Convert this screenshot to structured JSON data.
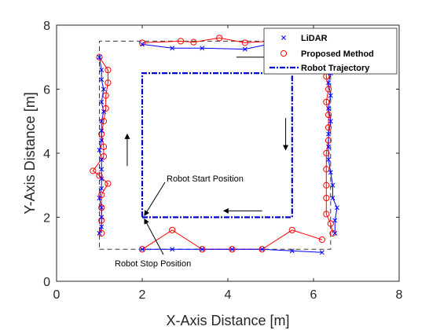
{
  "chart_data": {
    "type": "scatter",
    "xlabel": "X-Axis Distance [m]",
    "ylabel": "Y-Axis Distance [m]",
    "xlim": [
      0,
      8
    ],
    "ylim": [
      0,
      8
    ],
    "xticks": [
      "0",
      "2",
      "4",
      "6",
      "8"
    ],
    "yticks": [
      "0",
      "2",
      "4",
      "6",
      "8"
    ],
    "grid": false,
    "legend_position": "top-right",
    "legend": [
      "LiDAR",
      "Proposed Method",
      "Robot Trajectory"
    ],
    "environment_outline": [
      [
        1.0,
        1.0
      ],
      [
        6.4,
        1.0
      ],
      [
        6.4,
        7.5
      ],
      [
        1.0,
        7.5
      ],
      [
        1.0,
        1.0
      ]
    ],
    "series": [
      {
        "name": "LiDAR",
        "marker": "x",
        "color": "#0000ff",
        "segments": [
          [
            [
              1.0,
              7.0
            ],
            [
              1.05,
              6.6
            ],
            [
              1.05,
              6.3
            ],
            [
              1.1,
              6.0
            ],
            [
              1.05,
              5.6
            ],
            [
              1.1,
              5.3
            ],
            [
              1.05,
              5.0
            ],
            [
              1.05,
              4.7
            ],
            [
              1.05,
              4.4
            ],
            [
              1.0,
              4.1
            ],
            [
              1.05,
              3.8
            ],
            [
              1.05,
              3.5
            ],
            [
              1.05,
              3.2
            ],
            [
              1.05,
              2.9
            ],
            [
              1.0,
              2.6
            ],
            [
              1.05,
              2.3
            ],
            [
              1.05,
              2.0
            ],
            [
              1.05,
              1.7
            ],
            [
              1.0,
              1.5
            ]
          ],
          [
            [
              2.0,
              7.4
            ],
            [
              2.7,
              7.28
            ],
            [
              3.4,
              7.28
            ],
            [
              4.4,
              7.25
            ],
            [
              5.0,
              7.42
            ]
          ],
          [
            [
              6.3,
              7.3
            ],
            [
              6.35,
              6.8
            ],
            [
              6.4,
              6.5
            ],
            [
              6.35,
              6.2
            ],
            [
              6.4,
              5.8
            ],
            [
              6.35,
              5.4
            ],
            [
              6.4,
              5.0
            ],
            [
              6.35,
              4.6
            ],
            [
              6.35,
              4.2
            ],
            [
              6.35,
              3.8
            ],
            [
              6.4,
              3.4
            ],
            [
              6.45,
              3.0
            ],
            [
              6.45,
              2.6
            ],
            [
              6.55,
              2.3
            ],
            [
              6.5,
              1.9
            ],
            [
              6.5,
              1.5
            ]
          ],
          [
            [
              2.0,
              1.0
            ],
            [
              2.7,
              1.0
            ],
            [
              3.4,
              1.0
            ],
            [
              4.1,
              1.0
            ],
            [
              4.8,
              1.0
            ],
            [
              5.5,
              0.95
            ],
            [
              6.2,
              0.9
            ]
          ]
        ]
      },
      {
        "name": "Proposed Method",
        "marker": "o",
        "color": "#ff0000",
        "segments": [
          [
            [
              1.0,
              7.0
            ],
            [
              1.2,
              6.6
            ],
            [
              1.2,
              6.2
            ],
            [
              1.15,
              5.8
            ],
            [
              1.15,
              5.4
            ],
            [
              1.1,
              5.0
            ],
            [
              1.05,
              4.6
            ],
            [
              1.1,
              4.2
            ],
            [
              1.1,
              3.9
            ],
            [
              0.85,
              3.45
            ],
            [
              1.0,
              3.3
            ],
            [
              1.2,
              3.05
            ],
            [
              1.05,
              2.7
            ],
            [
              1.05,
              2.3
            ],
            [
              1.05,
              1.9
            ],
            [
              1.05,
              1.5
            ]
          ],
          [
            [
              2.0,
              7.45
            ],
            [
              2.9,
              7.5
            ],
            [
              3.2,
              7.47
            ],
            [
              3.8,
              7.6
            ],
            [
              4.4,
              7.45
            ],
            [
              5.0,
              7.5
            ]
          ],
          [
            [
              6.3,
              7.3
            ],
            [
              6.3,
              6.8
            ],
            [
              6.3,
              6.4
            ],
            [
              6.35,
              6.0
            ],
            [
              6.3,
              5.6
            ],
            [
              6.35,
              5.2
            ],
            [
              6.35,
              4.8
            ],
            [
              6.35,
              4.4
            ],
            [
              6.3,
              4.0
            ],
            [
              6.3,
              3.5
            ],
            [
              6.3,
              3.0
            ],
            [
              6.3,
              2.6
            ],
            [
              6.3,
              2.1
            ],
            [
              6.4,
              1.8
            ],
            [
              6.45,
              1.5
            ]
          ],
          [
            [
              2.0,
              1.0
            ],
            [
              2.7,
              1.6
            ],
            [
              3.4,
              1.0
            ],
            [
              4.1,
              1.0
            ],
            [
              4.8,
              1.0
            ],
            [
              5.5,
              1.6
            ],
            [
              6.2,
              1.3
            ]
          ]
        ]
      },
      {
        "name": "Robot Trajectory",
        "style": "dash-dot",
        "color": "#0000cc",
        "points": [
          [
            2.0,
            2.0
          ],
          [
            5.5,
            2.0
          ],
          [
            5.5,
            6.5
          ],
          [
            2.0,
            6.5
          ],
          [
            2.0,
            2.0
          ]
        ]
      }
    ],
    "annotations": [
      {
        "text": "Robot Start Position",
        "points_to": [
          2.05,
          2.05
        ]
      },
      {
        "text": "Robot Stop Position",
        "points_to": [
          2.05,
          1.95
        ]
      }
    ],
    "direction_arrows": [
      {
        "from": [
          4.2,
          7.0
        ],
        "to": [
          5.0,
          7.0
        ]
      },
      {
        "from": [
          5.35,
          5.1
        ],
        "to": [
          5.35,
          4.1
        ]
      },
      {
        "from": [
          4.8,
          2.2
        ],
        "to": [
          3.9,
          2.2
        ]
      },
      {
        "from": [
          1.65,
          3.6
        ],
        "to": [
          1.65,
          4.6
        ]
      }
    ]
  }
}
